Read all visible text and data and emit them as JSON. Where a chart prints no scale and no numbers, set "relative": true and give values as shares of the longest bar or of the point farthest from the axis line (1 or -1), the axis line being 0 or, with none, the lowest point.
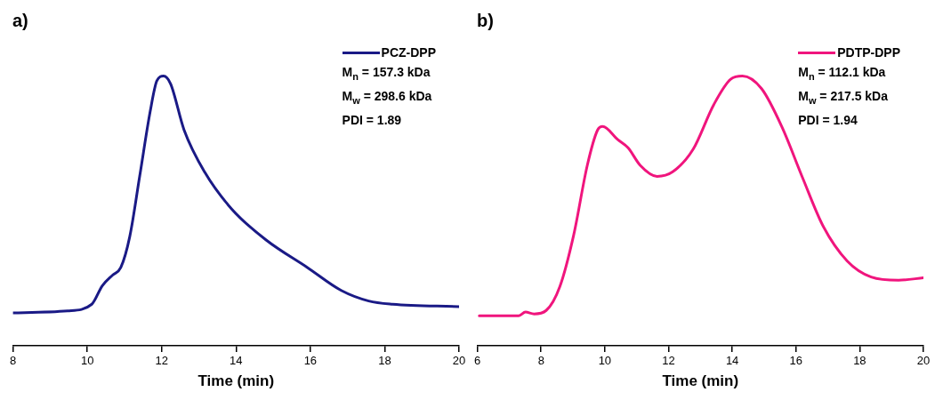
{
  "chart_data": [
    {
      "type": "line",
      "title": "a)",
      "xlabel": "Time (min)",
      "relative": true,
      "xlim": [
        8,
        20
      ],
      "xticks": [
        8,
        10,
        12,
        14,
        16,
        18,
        20
      ],
      "tick_labels": "x",
      "grid": false,
      "legend": "top right",
      "marker": "none",
      "line_style": "solid",
      "series": [
        {
          "name": "PCZ-DPP",
          "color": "#1a1a86",
          "x": [
            8.0,
            9.47,
            10.12,
            10.4,
            10.68,
            10.9,
            11.14,
            11.41,
            11.69,
            11.87,
            12.05,
            12.24,
            12.6,
            13.16,
            13.89,
            14.81,
            15.92,
            16.83,
            17.57,
            18.21,
            20.0
          ],
          "values": [
            0.122,
            0.129,
            0.154,
            0.222,
            0.262,
            0.29,
            0.404,
            0.63,
            0.868,
            0.982,
            1.0,
            0.971,
            0.801,
            0.643,
            0.506,
            0.392,
            0.29,
            0.205,
            0.166,
            0.154,
            0.145
          ]
        }
      ],
      "annotations": [
        "M$_{n}$ = 157.3 kDa",
        "M$_{w}$ = 298.6 kDa",
        "PDI = 1.89"
      ]
    },
    {
      "type": "line",
      "title": "b)",
      "xlabel": "Time (min)",
      "relative": true,
      "xlim": [
        6,
        20
      ],
      "xticks": [
        6,
        8,
        10,
        12,
        14,
        16,
        18,
        20
      ],
      "tick_labels": "x",
      "grid": false,
      "legend": "top right",
      "marker": "none",
      "line_style": "solid",
      "series": [
        {
          "name": "PDTP-DPP",
          "color": "#f0157d",
          "x": [
            6.06,
            7.3,
            7.51,
            7.78,
            8.16,
            8.59,
            9.02,
            9.45,
            9.77,
            9.93,
            10.41,
            10.73,
            11.11,
            11.64,
            12.13,
            12.77,
            13.42,
            13.95,
            14.32,
            14.92,
            15.56,
            16.21,
            16.85,
            17.61,
            18.36,
            19.22,
            20.0
          ],
          "values": [
            0.111,
            0.111,
            0.125,
            0.118,
            0.131,
            0.22,
            0.409,
            0.669,
            0.799,
            0.813,
            0.764,
            0.734,
            0.669,
            0.628,
            0.645,
            0.728,
            0.894,
            0.988,
            1.0,
            0.953,
            0.811,
            0.622,
            0.444,
            0.314,
            0.255,
            0.243,
            0.252
          ]
        }
      ],
      "annotations": [
        "M$_{n}$ = 112.1 kDa",
        "M$_{w}$ = 217.5 kDa",
        "PDI = 1.94"
      ]
    }
  ]
}
